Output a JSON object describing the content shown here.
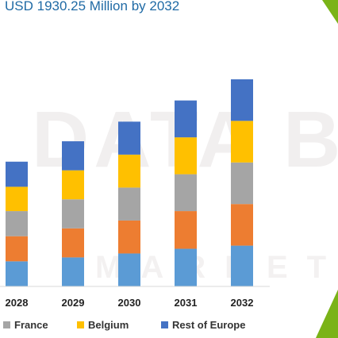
{
  "title": "USD 1930.25 Million by 2032",
  "colors": {
    "title": "#1f6aa5",
    "watermark": "#f0eeee",
    "accent_green": "#7ab317"
  },
  "watermark": {
    "line1": "DATA BR",
    "line2": "MARKET"
  },
  "chart_data": {
    "type": "bar",
    "stacked": true,
    "categories": [
      "2028",
      "2029",
      "2030",
      "2031",
      "2032"
    ],
    "series": [
      {
        "name": "",
        "color": "#5b9bd5",
        "values": [
          32,
          37,
          42,
          48,
          52
        ]
      },
      {
        "name": "",
        "color": "#ed7d31",
        "values": [
          32,
          37,
          42,
          48,
          53
        ]
      },
      {
        "name": "France",
        "color": "#a5a5a5",
        "values": [
          32,
          37,
          42,
          47,
          53
        ]
      },
      {
        "name": "Belgium",
        "color": "#ffc000",
        "values": [
          31,
          37,
          42,
          47,
          53
        ]
      },
      {
        "name": "Rest of Europe",
        "color": "#4472c4",
        "values": [
          32,
          37,
          42,
          47,
          53
        ]
      }
    ],
    "legend": [
      {
        "label": "France",
        "color": "#a5a5a5"
      },
      {
        "label": "Belgium",
        "color": "#ffc000"
      },
      {
        "label": "Rest of Europe",
        "color": "#4472c4"
      }
    ],
    "legend_placement": "bottom",
    "xlabel": "",
    "ylabel": "",
    "ylim": [
      0,
      270
    ],
    "grid": false,
    "axis_line": true
  }
}
